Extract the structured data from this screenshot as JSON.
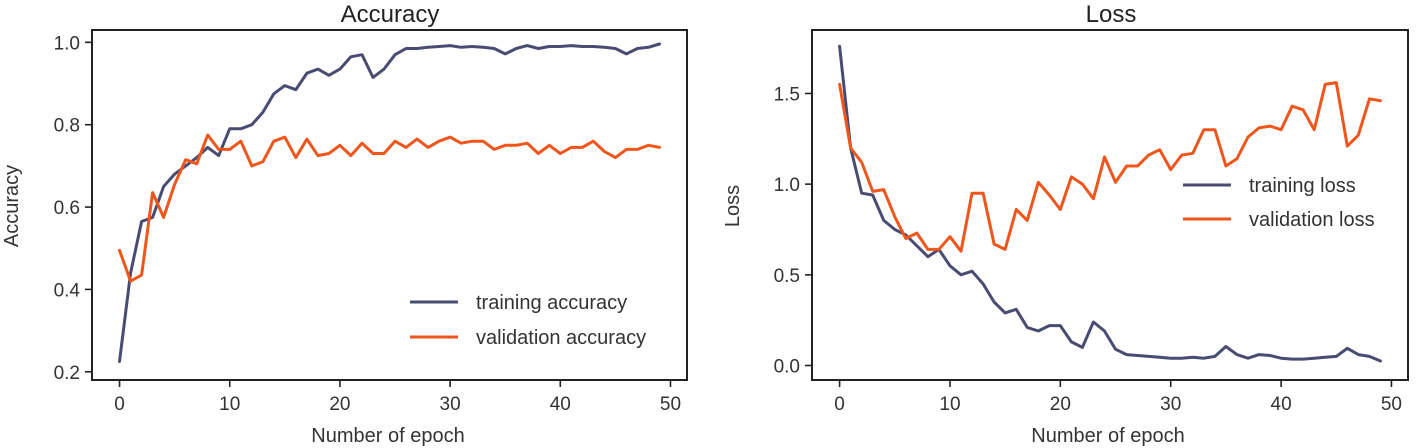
{
  "colors": {
    "training": "#4a4b72",
    "validation": "#f0561c"
  },
  "chart_data": [
    {
      "type": "line",
      "title": "Accuracy",
      "xlabel": "Number of epoch",
      "ylabel": "Accuracy",
      "xlim": [
        -2.5,
        51.5
      ],
      "ylim": [
        0.18,
        1.03
      ],
      "xticks": [
        0,
        10,
        20,
        30,
        40,
        50
      ],
      "xtick_labels": [
        "0",
        "10",
        "20",
        "30",
        "40",
        "50"
      ],
      "yticks": [
        0.2,
        0.4,
        0.6,
        0.8,
        1.0
      ],
      "ytick_labels": [
        "0.2",
        "0.4",
        "0.6",
        "0.8",
        "1.0"
      ],
      "legend_position": "bottom-right",
      "series": [
        {
          "name": "training accuracy",
          "color": "#4a4b72",
          "x": [
            0,
            1,
            2,
            3,
            4,
            5,
            6,
            7,
            8,
            9,
            10,
            11,
            12,
            13,
            14,
            15,
            16,
            17,
            18,
            19,
            20,
            21,
            22,
            23,
            24,
            25,
            26,
            27,
            28,
            29,
            30,
            31,
            32,
            33,
            34,
            35,
            36,
            37,
            38,
            39,
            40,
            41,
            42,
            43,
            44,
            45,
            46,
            47,
            48,
            49
          ],
          "y": [
            0.225,
            0.44,
            0.565,
            0.575,
            0.65,
            0.68,
            0.7,
            0.72,
            0.745,
            0.725,
            0.79,
            0.79,
            0.8,
            0.83,
            0.875,
            0.895,
            0.885,
            0.925,
            0.935,
            0.92,
            0.935,
            0.965,
            0.97,
            0.915,
            0.935,
            0.97,
            0.985,
            0.985,
            0.988,
            0.99,
            0.992,
            0.988,
            0.99,
            0.988,
            0.985,
            0.972,
            0.985,
            0.992,
            0.985,
            0.99,
            0.99,
            0.992,
            0.99,
            0.99,
            0.988,
            0.985,
            0.972,
            0.985,
            0.988,
            0.996
          ]
        },
        {
          "name": "validation accuracy",
          "color": "#f0561c",
          "x": [
            0,
            1,
            2,
            3,
            4,
            5,
            6,
            7,
            8,
            9,
            10,
            11,
            12,
            13,
            14,
            15,
            16,
            17,
            18,
            19,
            20,
            21,
            22,
            23,
            24,
            25,
            26,
            27,
            28,
            29,
            30,
            31,
            32,
            33,
            34,
            35,
            36,
            37,
            38,
            39,
            40,
            41,
            42,
            43,
            44,
            45,
            46,
            47,
            48,
            49
          ],
          "y": [
            0.495,
            0.42,
            0.435,
            0.635,
            0.575,
            0.655,
            0.715,
            0.705,
            0.775,
            0.74,
            0.74,
            0.76,
            0.7,
            0.71,
            0.76,
            0.77,
            0.72,
            0.765,
            0.725,
            0.73,
            0.75,
            0.725,
            0.755,
            0.73,
            0.73,
            0.76,
            0.745,
            0.765,
            0.745,
            0.76,
            0.77,
            0.755,
            0.76,
            0.76,
            0.74,
            0.75,
            0.75,
            0.755,
            0.73,
            0.75,
            0.73,
            0.745,
            0.745,
            0.76,
            0.735,
            0.72,
            0.74,
            0.74,
            0.75,
            0.745
          ]
        }
      ]
    },
    {
      "type": "line",
      "title": "Loss",
      "xlabel": "Number of epoch",
      "ylabel": "Loss",
      "xlim": [
        -2.5,
        51.5
      ],
      "ylim": [
        -0.08,
        1.85
      ],
      "xticks": [
        0,
        10,
        20,
        30,
        40,
        50
      ],
      "xtick_labels": [
        "0",
        "10",
        "20",
        "30",
        "40",
        "50"
      ],
      "yticks": [
        0.0,
        0.5,
        1.0,
        1.5
      ],
      "ytick_labels": [
        "0.0",
        "0.5",
        "1.0",
        "1.5"
      ],
      "legend_position": "right",
      "series": [
        {
          "name": "training loss",
          "color": "#4a4b72",
          "x": [
            0,
            1,
            2,
            3,
            4,
            5,
            6,
            7,
            8,
            9,
            10,
            11,
            12,
            13,
            14,
            15,
            16,
            17,
            18,
            19,
            20,
            21,
            22,
            23,
            24,
            25,
            26,
            27,
            28,
            29,
            30,
            31,
            32,
            33,
            34,
            35,
            36,
            37,
            38,
            39,
            40,
            41,
            42,
            43,
            44,
            45,
            46,
            47,
            48,
            49
          ],
          "y": [
            1.76,
            1.2,
            0.95,
            0.94,
            0.8,
            0.75,
            0.72,
            0.66,
            0.6,
            0.64,
            0.55,
            0.5,
            0.52,
            0.45,
            0.35,
            0.29,
            0.31,
            0.21,
            0.19,
            0.22,
            0.22,
            0.13,
            0.1,
            0.24,
            0.19,
            0.09,
            0.06,
            0.055,
            0.05,
            0.045,
            0.04,
            0.04,
            0.045,
            0.04,
            0.05,
            0.105,
            0.06,
            0.04,
            0.06,
            0.055,
            0.04,
            0.035,
            0.035,
            0.04,
            0.045,
            0.05,
            0.095,
            0.06,
            0.05,
            0.025
          ]
        },
        {
          "name": "validation loss",
          "color": "#f0561c",
          "x": [
            0,
            1,
            2,
            3,
            4,
            5,
            6,
            7,
            8,
            9,
            10,
            11,
            12,
            13,
            14,
            15,
            16,
            17,
            18,
            19,
            20,
            21,
            22,
            23,
            24,
            25,
            26,
            27,
            28,
            29,
            30,
            31,
            32,
            33,
            34,
            35,
            36,
            37,
            38,
            39,
            40,
            41,
            42,
            43,
            44,
            45,
            46,
            47,
            48,
            49
          ],
          "y": [
            1.55,
            1.2,
            1.12,
            0.96,
            0.97,
            0.82,
            0.7,
            0.73,
            0.64,
            0.64,
            0.71,
            0.63,
            0.95,
            0.95,
            0.67,
            0.64,
            0.86,
            0.8,
            1.01,
            0.94,
            0.86,
            1.04,
            1.0,
            0.92,
            1.15,
            1.01,
            1.1,
            1.1,
            1.16,
            1.19,
            1.08,
            1.16,
            1.17,
            1.3,
            1.3,
            1.1,
            1.14,
            1.26,
            1.31,
            1.32,
            1.3,
            1.43,
            1.41,
            1.3,
            1.55,
            1.56,
            1.21,
            1.27,
            1.47,
            1.46
          ]
        }
      ]
    }
  ]
}
